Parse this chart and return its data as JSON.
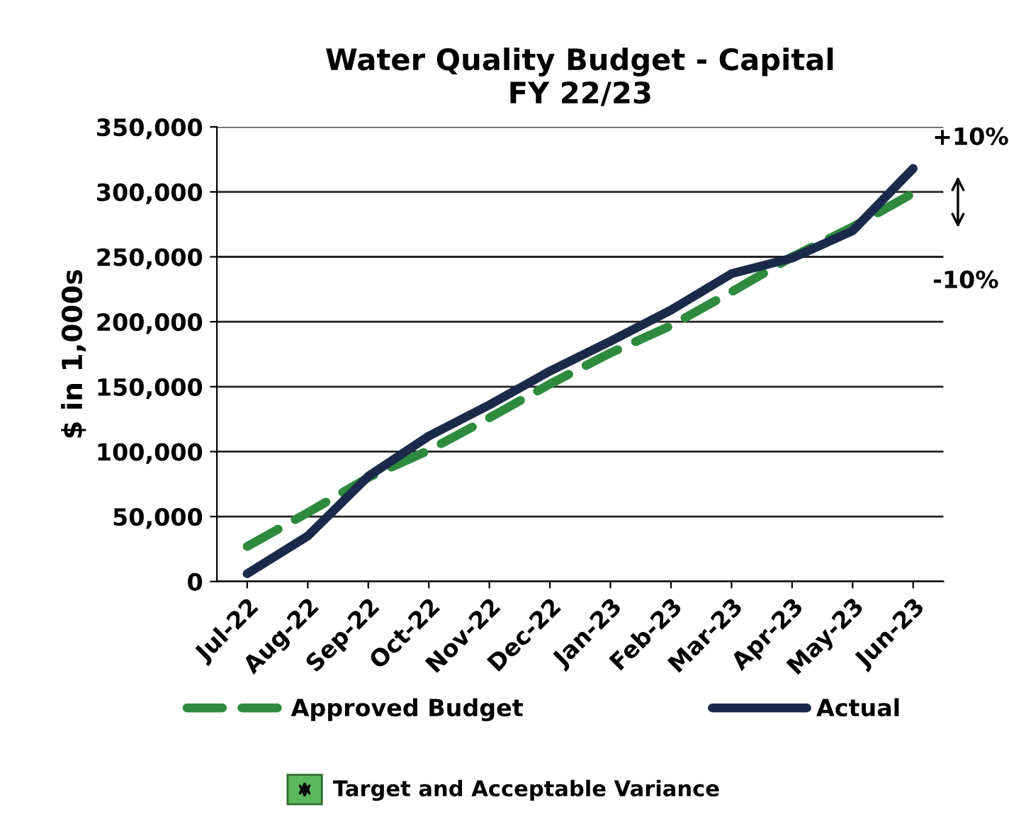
{
  "chart_data": {
    "type": "line",
    "title": "Water Quality Budget - Capital\nFY 22/23",
    "ylabel": "$ in 1,000s",
    "categories": [
      "Jul-22",
      "Aug-22",
      "Sep-22",
      "Oct-22",
      "Nov-22",
      "Dec-22",
      "Jan-23",
      "Feb-23",
      "Mar-23",
      "Apr-23",
      "May-23",
      "Jun-23"
    ],
    "series": [
      {
        "name": "Approved Budget",
        "color": "#2e8b3e",
        "line_style": "dashed",
        "values": [
          27000,
          53000,
          80000,
          101000,
          126000,
          152000,
          176000,
          197000,
          223000,
          250000,
          273000,
          299000
        ]
      },
      {
        "name": "Actual",
        "color": "#1b2a4a",
        "line_style": "solid",
        "values": [
          6000,
          35000,
          81000,
          112000,
          136000,
          162000,
          185000,
          209000,
          237000,
          249000,
          270000,
          318000
        ]
      }
    ],
    "ylim": [
      0,
      350000
    ],
    "yticks": [
      {
        "value": 0,
        "label": "0"
      },
      {
        "value": 50000,
        "label": "50,000"
      },
      {
        "value": 100000,
        "label": "100,000"
      },
      {
        "value": 150000,
        "label": "150,000"
      },
      {
        "value": 200000,
        "label": "200,000"
      },
      {
        "value": 250000,
        "label": "250,000"
      },
      {
        "value": 300000,
        "label": "300,000"
      },
      {
        "value": 350000,
        "label": "350,000"
      }
    ],
    "grid": "y",
    "legend": "bottom",
    "annotations": [
      "+10%",
      "-10%",
      "Target and Acceptable Variance"
    ]
  }
}
